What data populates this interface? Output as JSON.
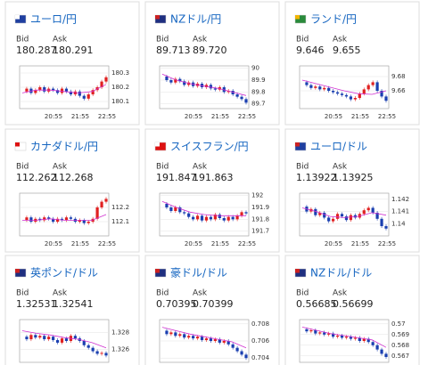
{
  "cards": [
    {
      "title": "ユーロ/円",
      "bid_label": "Bid",
      "ask_label": "Ask",
      "bid": "180.287",
      "ask": "180.291",
      "chart": {
        "ylim": [
          180.05,
          180.35
        ],
        "yticks": [
          180.3,
          180.2,
          180.1
        ],
        "xticks": [
          "20:55",
          "21:55",
          "22:55"
        ],
        "closes": [
          180.17,
          180.19,
          180.16,
          180.18,
          180.2,
          180.17,
          180.19,
          180.18,
          180.16,
          180.19,
          180.17,
          180.15,
          180.17,
          180.14,
          180.12,
          180.15,
          180.18,
          180.2,
          180.24,
          180.27
        ],
        "ma": [
          180.16,
          180.18,
          180.18,
          180.17,
          180.16,
          180.17,
          180.22
        ]
      }
    },
    {
      "title": "NZドル/円",
      "bid_label": "Bid",
      "ask_label": "Ask",
      "bid": "89.713",
      "ask": "89.720",
      "chart": {
        "ylim": [
          89.66,
          90.02
        ],
        "yticks": [
          90,
          89.9,
          89.8,
          89.7
        ],
        "xticks": [
          "20:55",
          "21:55",
          "22:55"
        ],
        "closes": [
          89.93,
          89.9,
          89.88,
          89.91,
          89.89,
          89.86,
          89.88,
          89.85,
          89.87,
          89.84,
          89.86,
          89.83,
          89.82,
          89.84,
          89.8,
          89.81,
          89.78,
          89.76,
          89.74,
          89.71
        ],
        "ma": [
          89.95,
          89.9,
          89.87,
          89.85,
          89.83,
          89.8,
          89.77
        ]
      }
    },
    {
      "title": "ランド/円",
      "bid_label": "Bid",
      "ask_label": "Ask",
      "bid": "9.646",
      "ask": "9.655",
      "chart": {
        "ylim": [
          9.635,
          9.695
        ],
        "yticks": [
          9.68,
          9.66
        ],
        "xticks": [
          "20:55",
          "21:55",
          "22:55"
        ],
        "closes": [
          9.672,
          9.668,
          9.664,
          9.666,
          9.662,
          9.664,
          9.66,
          9.658,
          9.656,
          9.654,
          9.652,
          9.648,
          9.65,
          9.656,
          9.662,
          9.668,
          9.672,
          9.66,
          9.652,
          9.646
        ],
        "ma": [
          9.675,
          9.67,
          9.665,
          9.66,
          9.656,
          9.655,
          9.66
        ]
      }
    },
    {
      "title": "カナダドル/円",
      "bid_label": "Bid",
      "ask_label": "Ask",
      "bid": "112.262",
      "ask": "112.268",
      "chart": {
        "ylim": [
          112.0,
          112.3
        ],
        "yticks": [
          112.2,
          112.1
        ],
        "xticks": [
          "20:55",
          "21:55",
          "22:55"
        ],
        "closes": [
          112.11,
          112.13,
          112.1,
          112.12,
          112.11,
          112.13,
          112.12,
          112.1,
          112.12,
          112.11,
          112.13,
          112.12,
          112.1,
          112.11,
          112.09,
          112.1,
          112.12,
          112.2,
          112.24,
          112.26
        ],
        "ma": [
          112.11,
          112.11,
          112.12,
          112.11,
          112.11,
          112.11,
          112.15
        ]
      }
    },
    {
      "title": "スイスフラン/円",
      "bid_label": "Bid",
      "ask_label": "Ask",
      "bid": "191.847",
      "ask": "191.863",
      "chart": {
        "ylim": [
          191.66,
          192.02
        ],
        "yticks": [
          192,
          191.9,
          191.8,
          191.7
        ],
        "xticks": [
          "20:55",
          "21:55",
          "22:55"
        ],
        "closes": [
          191.93,
          191.9,
          191.87,
          191.9,
          191.86,
          191.85,
          191.82,
          191.8,
          191.83,
          191.79,
          191.82,
          191.8,
          191.84,
          191.81,
          191.79,
          191.82,
          191.8,
          191.83,
          191.86,
          191.85
        ],
        "ma": [
          191.95,
          191.9,
          191.86,
          191.84,
          191.83,
          191.83,
          191.83
        ]
      }
    },
    {
      "title": "ユーロ/ドル",
      "bid_label": "Bid",
      "ask_label": "Ask",
      "bid": "1.13922",
      "ask": "1.13925",
      "chart": {
        "ylim": [
          1.139,
          1.1425
        ],
        "yticks": [
          1.142,
          1.141,
          1.14
        ],
        "xticks": [
          "20:55",
          "21:55",
          "22:55"
        ],
        "closes": [
          1.1414,
          1.141,
          1.1412,
          1.1407,
          1.1409,
          1.1405,
          1.1402,
          1.1404,
          1.1408,
          1.1406,
          1.1403,
          1.1407,
          1.1405,
          1.1408,
          1.1411,
          1.1413,
          1.1409,
          1.1404,
          1.1398,
          1.1396
        ],
        "ma": [
          1.1413,
          1.141,
          1.1406,
          1.1405,
          1.1406,
          1.1409,
          1.1407
        ]
      }
    },
    {
      "title": "英ポンド/ドル",
      "bid_label": "Bid",
      "ask_label": "Ask",
      "bid": "1.32531",
      "ask": "1.32541",
      "chart": {
        "ylim": [
          1.3245,
          1.3295
        ],
        "yticks": [
          1.328,
          1.326
        ],
        "xticks": [],
        "closes": [
          1.3275,
          1.3272,
          1.3277,
          1.3274,
          1.3276,
          1.3272,
          1.3275,
          1.3271,
          1.3268,
          1.3273,
          1.327,
          1.3276,
          1.3273,
          1.327,
          1.3265,
          1.3262,
          1.3258,
          1.3255,
          1.3256,
          1.3253
        ],
        "ma": [
          1.3282,
          1.3279,
          1.3277,
          1.3274,
          1.3272,
          1.3268,
          1.3262
        ]
      }
    },
    {
      "title": "豪ドル/ドル",
      "bid_label": "Bid",
      "ask_label": "Ask",
      "bid": "0.70395",
      "ask": "0.70399",
      "chart": {
        "ylim": [
          0.7035,
          0.7085
        ],
        "yticks": [
          0.708,
          0.706,
          0.704
        ],
        "xticks": [],
        "closes": [
          0.7072,
          0.7068,
          0.707,
          0.7066,
          0.7068,
          0.7064,
          0.7066,
          0.7063,
          0.7065,
          0.7061,
          0.7063,
          0.706,
          0.7062,
          0.7058,
          0.706,
          0.7056,
          0.7052,
          0.7048,
          0.7044,
          0.704
        ],
        "ma": [
          0.7076,
          0.7072,
          0.7068,
          0.7065,
          0.7062,
          0.7059,
          0.7052
        ]
      }
    },
    {
      "title": "NZドル/ドル",
      "bid_label": "Bid",
      "ask_label": "Ask",
      "bid": "0.56685",
      "ask": "0.56699",
      "chart": {
        "ylim": [
          0.5664,
          0.5704
        ],
        "yticks": [
          0.57,
          0.569,
          0.568,
          0.567
        ],
        "xticks": [],
        "closes": [
          0.5695,
          0.5693,
          0.5694,
          0.5691,
          0.5692,
          0.569,
          0.5691,
          0.5688,
          0.5689,
          0.5687,
          0.5688,
          0.5686,
          0.5687,
          0.5684,
          0.5686,
          0.5683,
          0.568,
          0.5676,
          0.5672,
          0.5669
        ],
        "ma": [
          0.5697,
          0.5694,
          0.5691,
          0.5689,
          0.5687,
          0.5685,
          0.5678
        ]
      }
    }
  ]
}
